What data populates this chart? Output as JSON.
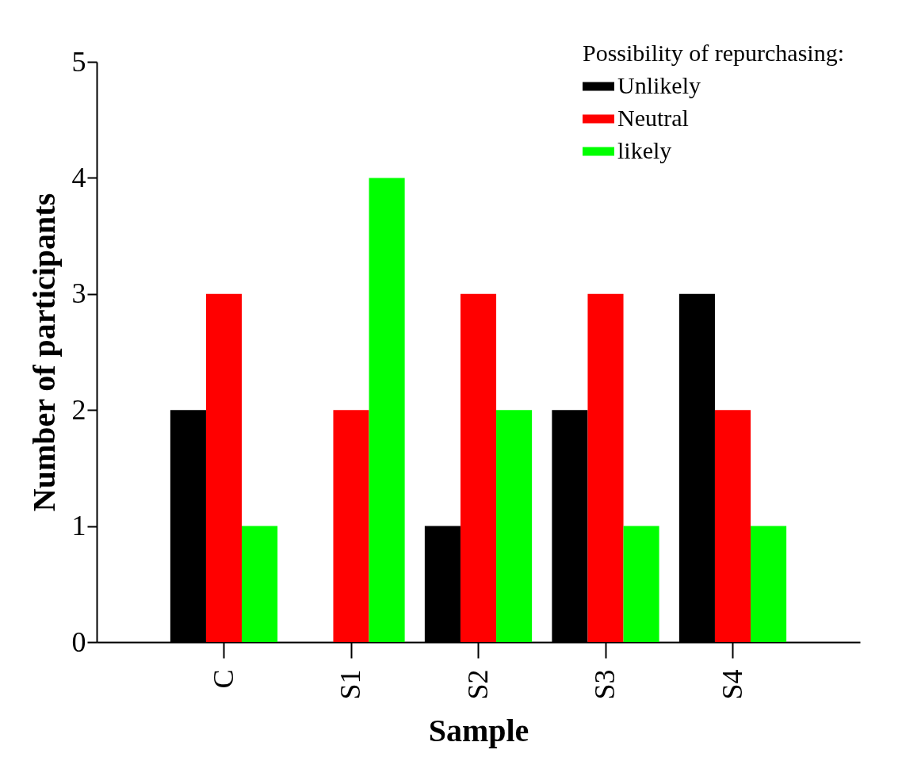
{
  "chart_data": {
    "type": "bar",
    "xlabel": "Sample",
    "ylabel": "Number of participants",
    "legend_title": "Possibility of repurchasing:",
    "categories": [
      "C",
      "S1",
      "S2",
      "S3",
      "S4"
    ],
    "series": [
      {
        "name": "Unlikely",
        "color": "#000000",
        "values": [
          2,
          0,
          1,
          2,
          3
        ]
      },
      {
        "name": "Neutral",
        "color": "#ff0000",
        "values": [
          3,
          2,
          3,
          3,
          2
        ]
      },
      {
        "name": "likely",
        "color": "#00ff00",
        "values": [
          1,
          4,
          2,
          1,
          1
        ]
      }
    ],
    "ylim": [
      0,
      5
    ],
    "yticks": [
      0,
      1,
      2,
      3,
      4,
      5
    ],
    "grid": false,
    "legend": "top right"
  }
}
